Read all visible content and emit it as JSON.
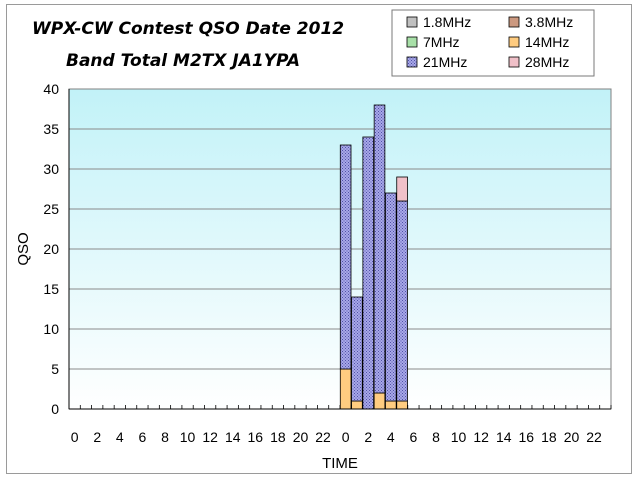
{
  "chart_data": {
    "type": "bar",
    "stacked": true,
    "title": "WPX-CW Contest QSO Date 2012",
    "subtitle": "Band Total M2TX JA1YPA",
    "xlabel": "TIME",
    "ylabel": "QSO",
    "ylim": [
      0,
      40
    ],
    "yticks": [
      0,
      5,
      10,
      15,
      20,
      25,
      30,
      35,
      40
    ],
    "grid": true,
    "legend_position": "top-right",
    "categories": [
      "0",
      "1",
      "2",
      "3",
      "4",
      "5",
      "6",
      "7",
      "8",
      "9",
      "10",
      "11",
      "12",
      "13",
      "14",
      "15",
      "16",
      "17",
      "18",
      "19",
      "20",
      "21",
      "22",
      "23",
      "0",
      "1",
      "2",
      "3",
      "4",
      "5",
      "6",
      "7",
      "8",
      "9",
      "10",
      "11",
      "12",
      "13",
      "14",
      "15",
      "16",
      "17",
      "18",
      "19",
      "20",
      "21",
      "22",
      "23"
    ],
    "tick_labels": [
      "0",
      "2",
      "4",
      "6",
      "8",
      "10",
      "12",
      "14",
      "16",
      "18",
      "20",
      "22",
      "0",
      "2",
      "4",
      "6",
      "8",
      "10",
      "12",
      "14",
      "16",
      "18",
      "20",
      "22"
    ],
    "series": [
      {
        "name": "1.8MHz",
        "color": "#c0c0c0",
        "pattern": "solid",
        "values": [
          0,
          0,
          0,
          0,
          0,
          0,
          0,
          0,
          0,
          0,
          0,
          0,
          0,
          0,
          0,
          0,
          0,
          0,
          0,
          0,
          0,
          0,
          0,
          0,
          0,
          0,
          0,
          0,
          0,
          0,
          0,
          0,
          0,
          0,
          0,
          0,
          0,
          0,
          0,
          0,
          0,
          0,
          0,
          0,
          0,
          0,
          0,
          0
        ]
      },
      {
        "name": "3.8MHz",
        "color": "#cc9980",
        "pattern": "solid",
        "values": [
          0,
          0,
          0,
          0,
          0,
          0,
          0,
          0,
          0,
          0,
          0,
          0,
          0,
          0,
          0,
          0,
          0,
          0,
          0,
          0,
          0,
          0,
          0,
          0,
          0,
          0,
          0,
          0,
          0,
          0,
          0,
          0,
          0,
          0,
          0,
          0,
          0,
          0,
          0,
          0,
          0,
          0,
          0,
          0,
          0,
          0,
          0,
          0
        ]
      },
      {
        "name": "7MHz",
        "color": "#a8e0a8",
        "pattern": "solid",
        "values": [
          0,
          0,
          0,
          0,
          0,
          0,
          0,
          0,
          0,
          0,
          0,
          0,
          0,
          0,
          0,
          0,
          0,
          0,
          0,
          0,
          0,
          0,
          0,
          0,
          0,
          0,
          0,
          0,
          0,
          0,
          0,
          0,
          0,
          0,
          0,
          0,
          0,
          0,
          0,
          0,
          0,
          0,
          0,
          0,
          0,
          0,
          0,
          0
        ]
      },
      {
        "name": "14MHz",
        "color": "#ffcc80",
        "pattern": "solid",
        "values": [
          0,
          0,
          0,
          0,
          0,
          0,
          0,
          0,
          0,
          0,
          0,
          0,
          0,
          0,
          0,
          0,
          0,
          0,
          0,
          0,
          0,
          0,
          0,
          0,
          5,
          1,
          0,
          2,
          1,
          1,
          0,
          0,
          0,
          0,
          0,
          0,
          0,
          0,
          0,
          0,
          0,
          0,
          0,
          0,
          0,
          0,
          0,
          0
        ]
      },
      {
        "name": "21MHz",
        "color": "#a8a8e8",
        "pattern": "dotted",
        "values": [
          0,
          0,
          0,
          0,
          0,
          0,
          0,
          0,
          0,
          0,
          0,
          0,
          0,
          0,
          0,
          0,
          0,
          0,
          0,
          0,
          0,
          0,
          0,
          0,
          28,
          13,
          34,
          36,
          26,
          25,
          0,
          0,
          0,
          0,
          0,
          0,
          0,
          0,
          0,
          0,
          0,
          0,
          0,
          0,
          0,
          0,
          0,
          0
        ]
      },
      {
        "name": "28MHz",
        "color": "#f0c0c8",
        "pattern": "solid",
        "values": [
          0,
          0,
          0,
          0,
          0,
          0,
          0,
          0,
          0,
          0,
          0,
          0,
          0,
          0,
          0,
          0,
          0,
          0,
          0,
          0,
          0,
          0,
          0,
          0,
          0,
          0,
          0,
          0,
          0,
          3,
          0,
          0,
          0,
          0,
          0,
          0,
          0,
          0,
          0,
          0,
          0,
          0,
          0,
          0,
          0,
          0,
          0,
          0
        ]
      }
    ]
  }
}
